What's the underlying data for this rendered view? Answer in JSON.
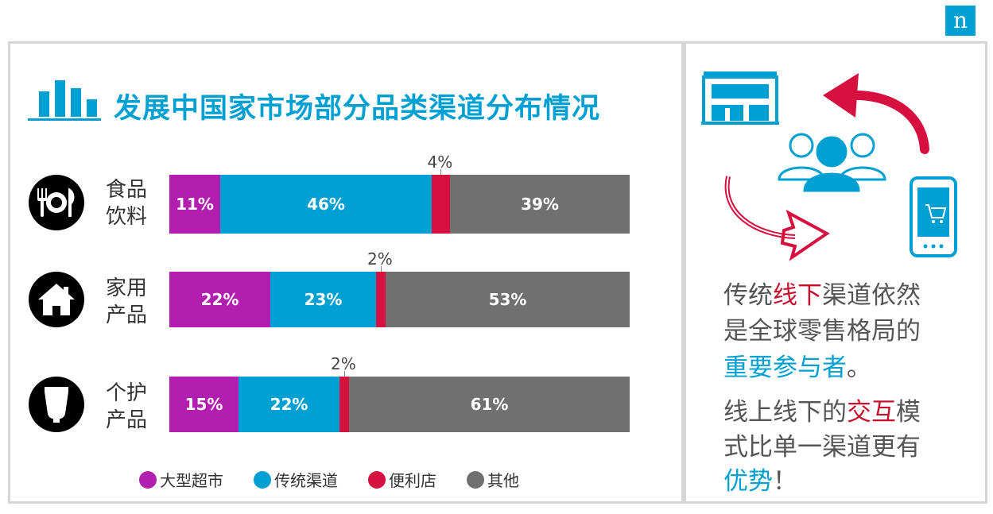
{
  "logo": {
    "letter": "n"
  },
  "title": "发展中国家市场部分品类渠道分布情况",
  "chart_data": {
    "type": "bar",
    "orientation": "horizontal",
    "stacked": true,
    "percent": true,
    "categories": [
      "食品\n饮料",
      "家用\n产品",
      "个护\n产品"
    ],
    "category_icons": [
      "plate-cutlery-icon",
      "house-icon",
      "tube-icon"
    ],
    "series": [
      {
        "name": "大型超市",
        "color": "#b21fae",
        "values": [
          11,
          22,
          15
        ]
      },
      {
        "name": "传统渠道",
        "color": "#00a0d2",
        "values": [
          46,
          23,
          22
        ]
      },
      {
        "name": "便利店",
        "color": "#d6103f",
        "values": [
          4,
          2,
          2
        ]
      },
      {
        "name": "其他",
        "color": "#707070",
        "values": [
          39,
          53,
          61
        ]
      }
    ],
    "data_labels": [
      [
        "11%",
        "46%",
        "4%",
        "39%"
      ],
      [
        "22%",
        "23%",
        "2%",
        "53%"
      ],
      [
        "15%",
        "22%",
        "2%",
        "61%"
      ]
    ],
    "xlim": [
      0,
      100
    ],
    "legend_position": "bottom"
  },
  "panel": {
    "icons": [
      "store-icon",
      "people-icon",
      "phone-cart-icon",
      "arrow-left-icon",
      "arrow-right-icon"
    ],
    "p1": {
      "line1_a": "传统",
      "line1_b": "线下",
      "line1_c": "渠道依然",
      "line2": "是全球零售格局的",
      "line3": "重要参与者",
      "line3_end": "。"
    },
    "p2": {
      "line1_a": "线上线下的",
      "line1_b": "交互",
      "line1_c": "模",
      "line2": "式比单一渠道更有",
      "line3": "优势",
      "line3_end": "！"
    }
  }
}
